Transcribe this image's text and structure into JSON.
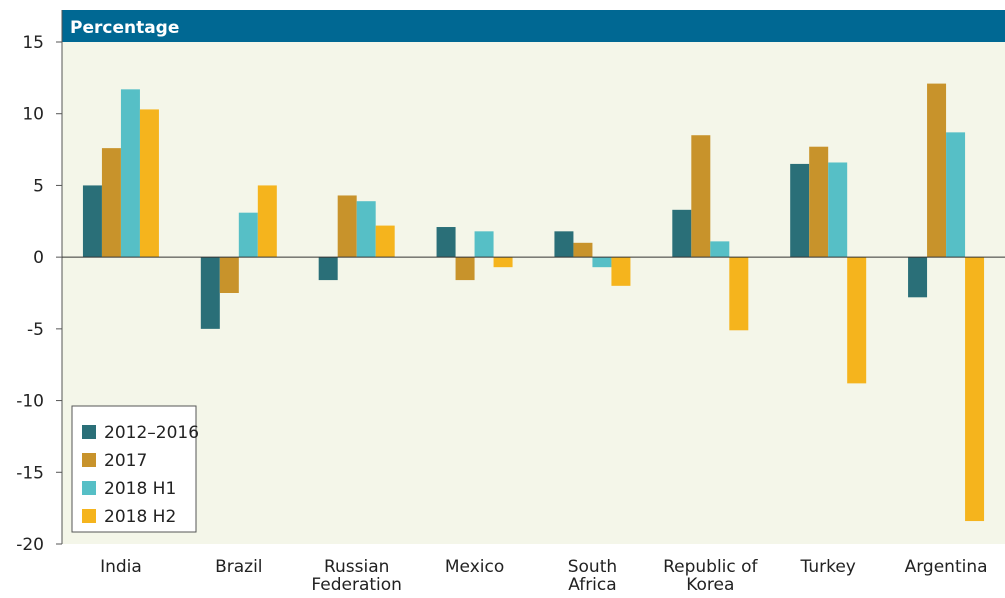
{
  "chart_data": {
    "type": "bar",
    "title": "Percentage",
    "categories": [
      [
        "India"
      ],
      [
        "Brazil"
      ],
      [
        "Russian",
        "Federation"
      ],
      [
        "Mexico"
      ],
      [
        "South",
        "Africa"
      ],
      [
        "Republic of",
        "Korea"
      ],
      [
        "Turkey"
      ],
      [
        "Argentina"
      ]
    ],
    "ylim": [
      -20,
      15
    ],
    "yticks": [
      15,
      10,
      5,
      0,
      -5,
      -10,
      -15,
      -20
    ],
    "series": [
      {
        "name": "2012–2016",
        "color": "#2a6f78",
        "values": [
          5.0,
          -5.0,
          -1.6,
          2.1,
          1.8,
          3.3,
          6.5,
          -2.8
        ]
      },
      {
        "name": "2017",
        "color": "#c8932b",
        "values": [
          7.6,
          -2.5,
          4.3,
          -1.6,
          1.0,
          8.5,
          7.7,
          12.1
        ]
      },
      {
        "name": "2018 H1",
        "color": "#56bfc6",
        "values": [
          11.7,
          3.1,
          3.9,
          1.8,
          -0.7,
          1.1,
          6.6,
          8.7
        ]
      },
      {
        "name": "2018 H2",
        "color": "#f5b41d",
        "values": [
          10.3,
          5.0,
          2.2,
          -0.7,
          -2.0,
          -5.1,
          -8.8,
          -18.4
        ]
      }
    ],
    "legend_position": "bottom-left",
    "grid": false
  },
  "colors": {
    "title_bar": "#006893",
    "plot_bg": "#f4f6e9"
  }
}
